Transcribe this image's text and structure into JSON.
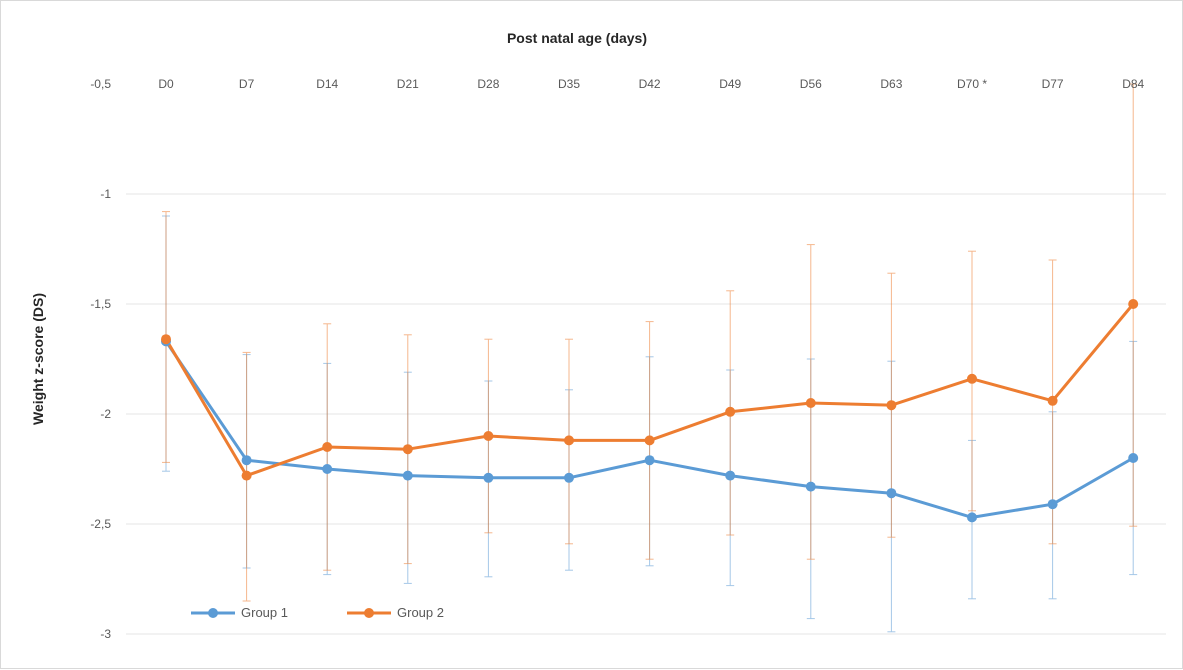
{
  "chart_data": {
    "type": "line",
    "title": "Post natal age (days)",
    "xlabel": "",
    "ylabel": "Weight z-score (DS)",
    "categories": [
      "D0",
      "D7",
      "D14",
      "D21",
      "D28",
      "D35",
      "D42",
      "D49",
      "D56",
      "D63",
      "D70 *",
      "D77",
      "D84"
    ],
    "y_ticks": [
      "-0,5",
      "-1",
      "-1,5",
      "-2",
      "-2,5",
      "-3"
    ],
    "y_tick_values": [
      -0.5,
      -1,
      -1.5,
      -2,
      -2.5,
      -3
    ],
    "ylim": [
      -3,
      -0.5
    ],
    "x_axis_position": "top",
    "grid": true,
    "legend_position": "bottom-left",
    "series": [
      {
        "name": "Group 1",
        "color": "#5b9bd5",
        "values": [
          -1.67,
          -2.21,
          -2.25,
          -2.28,
          -2.29,
          -2.29,
          -2.21,
          -2.28,
          -2.33,
          -2.36,
          -2.47,
          -2.41,
          -2.2
        ],
        "err_upper": [
          -1.1,
          -1.73,
          -1.77,
          -1.81,
          -1.85,
          -1.89,
          -1.74,
          -1.8,
          -1.75,
          -1.76,
          -2.12,
          -1.99,
          -1.67
        ],
        "err_lower": [
          -2.26,
          -2.7,
          -2.73,
          -2.77,
          -2.74,
          -2.71,
          -2.69,
          -2.78,
          -2.93,
          -2.99,
          -2.84,
          -2.84,
          -2.73
        ]
      },
      {
        "name": "Group 2",
        "color": "#ed7d31",
        "values": [
          -1.66,
          -2.28,
          -2.15,
          -2.16,
          -2.1,
          -2.12,
          -2.12,
          -1.99,
          -1.95,
          -1.96,
          -1.84,
          -1.94,
          -1.5
        ],
        "err_upper": [
          -1.08,
          -1.72,
          -1.59,
          -1.64,
          -1.66,
          -1.66,
          -1.58,
          -1.44,
          -1.23,
          -1.36,
          -1.26,
          -1.3,
          -0.5
        ],
        "err_lower": [
          -2.22,
          -2.85,
          -2.71,
          -2.68,
          -2.54,
          -2.59,
          -2.66,
          -2.55,
          -2.66,
          -2.56,
          -2.44,
          -2.59,
          -2.51
        ]
      }
    ]
  }
}
